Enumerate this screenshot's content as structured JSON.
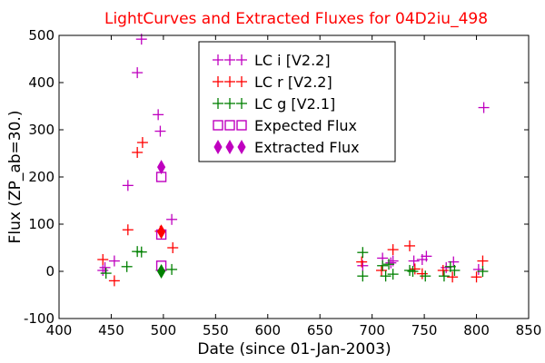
{
  "chart_data": {
    "type": "scatter",
    "title": "LightCurves and Extracted Fluxes for 04D2iu_498",
    "xlabel": "Date (since 01-Jan-2003)",
    "ylabel": "Flux (ZP_ab=30.)",
    "xlim": [
      400,
      850
    ],
    "ylim": [
      -100,
      500
    ],
    "xticks": [
      "400",
      "450",
      "500",
      "550",
      "600",
      "650",
      "700",
      "750",
      "800",
      "850"
    ],
    "yticks": [
      "-100",
      "0",
      "100",
      "200",
      "300",
      "400",
      "500"
    ],
    "grid": false,
    "legend_position": "top-center",
    "series": [
      {
        "name": "LC i [V2.2]",
        "color": "#bf00bf",
        "marker": "plus",
        "x": [
          442,
          444,
          453,
          466,
          475,
          479,
          495,
          497,
          508,
          691,
          710,
          718,
          720,
          740,
          748,
          752,
          771,
          778,
          802,
          807
        ],
        "y": [
          2,
          8,
          22,
          182,
          421,
          492,
          332,
          297,
          110,
          12,
          28,
          18,
          22,
          22,
          25,
          32,
          8,
          20,
          4,
          347
        ]
      },
      {
        "name": "LC r [V2.2]",
        "color": "#ff0000",
        "marker": "plus",
        "x": [
          442,
          453,
          466,
          475,
          480,
          497,
          509,
          690,
          709,
          720,
          736,
          741,
          748,
          768,
          777,
          800,
          806
        ],
        "y": [
          25,
          -20,
          88,
          252,
          273,
          85,
          50,
          20,
          2,
          46,
          54,
          5,
          -5,
          2,
          -12,
          -12,
          22
        ]
      },
      {
        "name": "LC g [V2.1]",
        "color": "#008000",
        "marker": "plus",
        "x": [
          445,
          465,
          475,
          479,
          498,
          508,
          691,
          691,
          710,
          713,
          716,
          720,
          736,
          739,
          751,
          769,
          775,
          779,
          806
        ],
        "y": [
          -4,
          10,
          42,
          41,
          2,
          4,
          40,
          -10,
          12,
          -10,
          15,
          -6,
          2,
          0,
          -10,
          -10,
          10,
          2,
          0
        ]
      },
      {
        "name": "Expected Flux",
        "color": "#bf00bf",
        "marker": "square",
        "x": [
          498,
          498,
          498
        ],
        "y": [
          200,
          78,
          12
        ]
      },
      {
        "name": "Extracted Flux",
        "color": "#bf00bf",
        "marker": "diamond",
        "x": [
          498,
          498,
          498
        ],
        "y": [
          221,
          84,
          0
        ],
        "point_colors": [
          "#bf00bf",
          "#ff0000",
          "#008000"
        ]
      }
    ]
  }
}
